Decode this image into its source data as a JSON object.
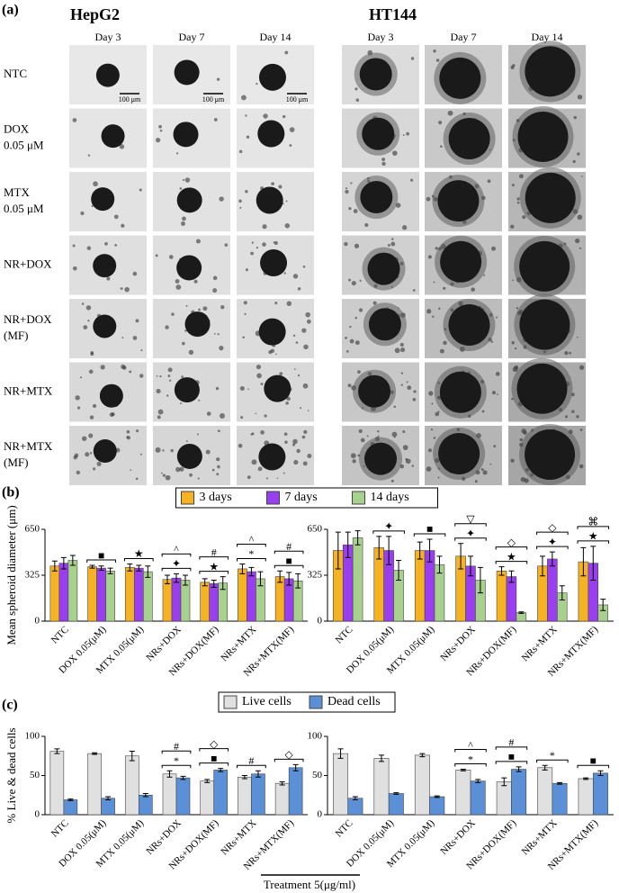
{
  "figure": {
    "panel_labels": [
      "(a)",
      "(b)",
      "(c)"
    ],
    "cell_lines": [
      {
        "name": "HepG2",
        "days": [
          "Day 3",
          "Day 7",
          "Day 14"
        ]
      },
      {
        "name": "HT144",
        "days": [
          "Day 3",
          "Day 7",
          "Day 14"
        ]
      }
    ],
    "rows": [
      [
        "NTC"
      ],
      [
        "DOX",
        "0.05 μM"
      ],
      [
        "MTX",
        "0.05 μM"
      ],
      [
        "NR+DOX"
      ],
      [
        "NR+DOX",
        "(MF)"
      ],
      [
        "NR+MTX"
      ],
      [
        "NR+MTX",
        "(MF)"
      ]
    ],
    "scale_bar": "100 μm",
    "xlabel": "Treatment 5(μg/ml)"
  },
  "chart_data": [
    {
      "type": "bar",
      "ylabel": "Mean spheroid diameter (μm)",
      "legend": "top",
      "categories": [
        "NTC",
        "DOX 0.05(μM)",
        "MTX 0.05(μM)",
        "NRs+DOX",
        "NRs+DOX(MF)",
        "NRs+MTX",
        "NRs+MTX(MF)"
      ],
      "ylim": [
        0,
        650
      ],
      "yticks": [
        0,
        325,
        650
      ],
      "series": [
        {
          "name": "3 days",
          "color": "#f5b324",
          "values": [
            390,
            385,
            380,
            295,
            275,
            370,
            315
          ],
          "errors": [
            35,
            10,
            25,
            30,
            25,
            35,
            40
          ]
        },
        {
          "name": "7 days",
          "color": "#9a3ff0",
          "values": [
            410,
            375,
            375,
            305,
            265,
            350,
            300
          ],
          "errors": [
            40,
            15,
            20,
            30,
            25,
            30,
            45
          ]
        },
        {
          "name": "14 days",
          "color": "#a9d18e",
          "values": [
            430,
            355,
            350,
            290,
            270,
            300,
            285
          ],
          "errors": [
            35,
            20,
            40,
            35,
            45,
            50,
            50
          ]
        }
      ],
      "annotations": [
        {
          "category": "DOX 0.05(μM)",
          "symbols": [
            "■"
          ]
        },
        {
          "category": "MTX 0.05(μM)",
          "symbols": [
            "★"
          ]
        },
        {
          "category": "NRs+DOX",
          "symbols": [
            "✦",
            "^"
          ]
        },
        {
          "category": "NRs+DOX(MF)",
          "symbols": [
            "★",
            "#"
          ]
        },
        {
          "category": "NRs+MTX",
          "symbols": [
            "*",
            "^"
          ]
        },
        {
          "category": "NRs+MTX(MF)",
          "symbols": [
            "■",
            "#"
          ]
        }
      ]
    },
    {
      "type": "bar",
      "categories": [
        "NTC",
        "DOX 0.05(μM)",
        "MTX 0.05(μM)",
        "NRs+DOX",
        "NRs+DOX(MF)",
        "NRs+MTX",
        "NRs+MTX(MF)"
      ],
      "ylim": [
        0,
        650
      ],
      "yticks": [
        0,
        325,
        650
      ],
      "series": [
        {
          "name": "3 days",
          "color": "#f5b324",
          "values": [
            500,
            520,
            500,
            460,
            355,
            390,
            420
          ],
          "errors": [
            130,
            80,
            60,
            90,
            30,
            70,
            100
          ]
        },
        {
          "name": "7 days",
          "color": "#9a3ff0",
          "values": [
            540,
            500,
            500,
            390,
            315,
            440,
            410
          ],
          "errors": [
            90,
            100,
            80,
            70,
            40,
            50,
            120
          ]
        },
        {
          "name": "14 days",
          "color": "#a9d18e",
          "values": [
            590,
            360,
            400,
            290,
            60,
            200,
            115
          ],
          "errors": [
            50,
            70,
            60,
            90,
            5,
            50,
            40
          ]
        }
      ],
      "annotations": [
        {
          "category": "DOX 0.05(μM)",
          "symbols": [
            "✦"
          ]
        },
        {
          "category": "MTX 0.05(μM)",
          "symbols": [
            "■"
          ]
        },
        {
          "category": "NRs+DOX",
          "symbols": [
            "✦",
            "▽"
          ]
        },
        {
          "category": "NRs+DOX(MF)",
          "symbols": [
            "★",
            "◇"
          ]
        },
        {
          "category": "NRs+MTX",
          "symbols": [
            "✦",
            "◇"
          ]
        },
        {
          "category": "NRs+MTX(MF)",
          "symbols": [
            "★",
            "⌘"
          ]
        }
      ]
    },
    {
      "type": "bar",
      "ylabel": "% Live & dead cells",
      "legend": "top",
      "categories": [
        "NTC",
        "DOX 0.05(μM)",
        "MTX 0.05(μM)",
        "NRs+DOX",
        "NRs+DOX(MF)",
        "NRs+MTX",
        "NRs+MTX(MF)"
      ],
      "ylim": [
        0,
        100
      ],
      "yticks": [
        0,
        50,
        100
      ],
      "series": [
        {
          "name": "Live cells",
          "color": "#e0e0e0",
          "values": [
            81,
            78,
            75,
            52,
            43,
            48,
            40
          ],
          "errors": [
            3,
            1,
            6,
            4,
            2,
            2,
            2
          ]
        },
        {
          "name": "Dead cells",
          "color": "#5b8fd6",
          "values": [
            19,
            21,
            25,
            47,
            57,
            52,
            60
          ],
          "errors": [
            1,
            2,
            2,
            2,
            2,
            4,
            4
          ]
        }
      ],
      "annotations": [
        {
          "category": "NRs+DOX",
          "symbols": [
            "*",
            "#"
          ]
        },
        {
          "category": "NRs+DOX(MF)",
          "symbols": [
            "■",
            "◇"
          ]
        },
        {
          "category": "NRs+MTX",
          "symbols": [
            "#"
          ]
        },
        {
          "category": "NRs+MTX(MF)",
          "symbols": [
            "◇"
          ]
        }
      ]
    },
    {
      "type": "bar",
      "categories": [
        "NTC",
        "DOX 0.05(μM)",
        "MTX 0.05(μM)",
        "NRs+DOX",
        "NRs+DOX(MF)",
        "NRs+MTX",
        "NRs+MTX(MF)"
      ],
      "ylim": [
        0,
        100
      ],
      "yticks": [
        0,
        50,
        100
      ],
      "series": [
        {
          "name": "Live cells",
          "color": "#e0e0e0",
          "values": [
            78,
            72,
            76,
            57,
            42,
            60,
            46
          ],
          "errors": [
            6,
            4,
            2,
            1,
            5,
            3,
            1
          ]
        },
        {
          "name": "Dead cells",
          "color": "#5b8fd6",
          "values": [
            21,
            27,
            23,
            43,
            58,
            40,
            53
          ],
          "errors": [
            2,
            1,
            1,
            2,
            3,
            1,
            3
          ]
        }
      ],
      "annotations": [
        {
          "category": "NRs+DOX",
          "symbols": [
            "*",
            "^"
          ]
        },
        {
          "category": "NRs+DOX(MF)",
          "symbols": [
            "■",
            "#"
          ]
        },
        {
          "category": "NRs+MTX",
          "symbols": [
            "*"
          ]
        },
        {
          "category": "NRs+MTX(MF)",
          "symbols": [
            "■"
          ]
        }
      ]
    }
  ]
}
